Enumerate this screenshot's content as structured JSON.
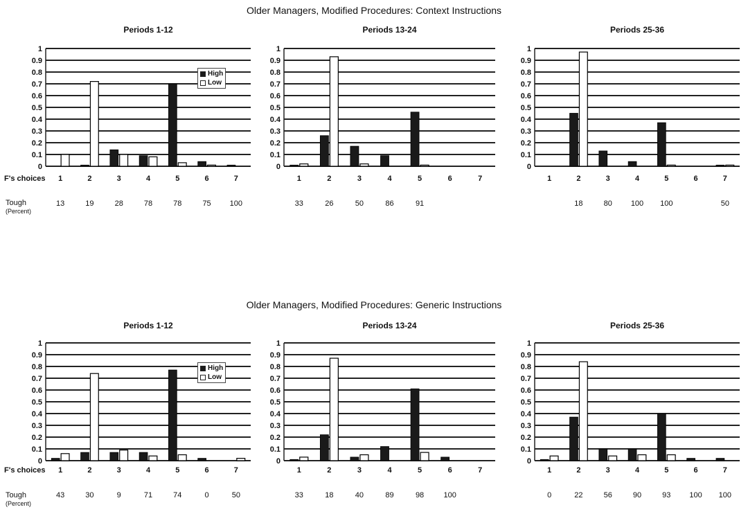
{
  "blocks": [
    {
      "title": "Older Managers, Modified Procedures:  Context Instructions"
    },
    {
      "title": "Older Managers, Modified Procedures:  Generic Instructions"
    }
  ],
  "labels": {
    "choices": "F's choices",
    "tough_main": "Tough",
    "tough_sub": "(Percent)"
  },
  "colors": {
    "high": "#1a1a1a",
    "low": "#ffffff",
    "grid": "#222222"
  },
  "chart_data": [
    {
      "type": "bar",
      "title": "Periods 1-12",
      "categories": [
        "1",
        "2",
        "3",
        "4",
        "5",
        "6",
        "7"
      ],
      "ylim": [
        0,
        1
      ],
      "yticks": [
        "0",
        "0.1",
        "0.2",
        "0.3",
        "0.4",
        "0.5",
        "0.6",
        "0.7",
        "0.8",
        "0.9",
        "1"
      ],
      "legend": [
        "High",
        "Low"
      ],
      "legend_position": "upper-right",
      "series": [
        {
          "name": "High",
          "values": [
            0.0,
            0.01,
            0.14,
            0.09,
            0.7,
            0.04,
            0.01
          ]
        },
        {
          "name": "Low",
          "values": [
            0.1,
            0.72,
            0.1,
            0.08,
            0.03,
            0.01,
            0.0
          ]
        }
      ],
      "tough": [
        "13",
        "19",
        "28",
        "78",
        "78",
        "75",
        "100"
      ]
    },
    {
      "type": "bar",
      "title": "Periods 13-24",
      "categories": [
        "1",
        "2",
        "3",
        "4",
        "5",
        "6",
        "7"
      ],
      "ylim": [
        0,
        1
      ],
      "yticks": [
        "0",
        "0.1",
        "0.2",
        "0.3",
        "0.4",
        "0.5",
        "0.6",
        "0.7",
        "0.8",
        "0.9",
        "1"
      ],
      "series": [
        {
          "name": "High",
          "values": [
            0.01,
            0.26,
            0.17,
            0.09,
            0.46,
            0.0,
            0.0
          ]
        },
        {
          "name": "Low",
          "values": [
            0.02,
            0.93,
            0.02,
            0.0,
            0.01,
            0.0,
            0.0
          ]
        }
      ],
      "tough": [
        "33",
        "26",
        "50",
        "86",
        "91",
        "",
        ""
      ]
    },
    {
      "type": "bar",
      "title": "Periods 25-36",
      "categories": [
        "1",
        "2",
        "3",
        "4",
        "5",
        "6",
        "7"
      ],
      "ylim": [
        0,
        1
      ],
      "yticks": [
        "0",
        "0.1",
        "0.2",
        "0.3",
        "0.4",
        "0.5",
        "0.6",
        "0.7",
        "0.8",
        "0.9",
        "1"
      ],
      "series": [
        {
          "name": "High",
          "values": [
            0.0,
            0.45,
            0.13,
            0.04,
            0.37,
            0.0,
            0.01
          ]
        },
        {
          "name": "Low",
          "values": [
            0.0,
            0.97,
            0.0,
            0.0,
            0.01,
            0.0,
            0.01
          ]
        }
      ],
      "tough": [
        "",
        "18",
        "80",
        "100",
        "100",
        "",
        "50"
      ]
    },
    {
      "type": "bar",
      "title": "Periods 1-12",
      "categories": [
        "1",
        "2",
        "3",
        "4",
        "5",
        "6",
        "7"
      ],
      "ylim": [
        0,
        1
      ],
      "yticks": [
        "0",
        "0.1",
        "0.2",
        "0.3",
        "0.4",
        "0.5",
        "0.6",
        "0.7",
        "0.8",
        "0.9",
        "1"
      ],
      "legend": [
        "High",
        "Low"
      ],
      "legend_position": "upper-right",
      "series": [
        {
          "name": "High",
          "values": [
            0.02,
            0.07,
            0.07,
            0.07,
            0.77,
            0.02,
            0.0
          ]
        },
        {
          "name": "Low",
          "values": [
            0.06,
            0.74,
            0.09,
            0.04,
            0.05,
            0.0,
            0.02
          ]
        }
      ],
      "tough": [
        "43",
        "30",
        "9",
        "71",
        "74",
        "0",
        "50"
      ]
    },
    {
      "type": "bar",
      "title": "Periods 13-24",
      "categories": [
        "1",
        "2",
        "3",
        "4",
        "5",
        "6",
        "7"
      ],
      "ylim": [
        0,
        1
      ],
      "yticks": [
        "0",
        "0.1",
        "0.2",
        "0.3",
        "0.4",
        "0.5",
        "0.6",
        "0.7",
        "0.8",
        "0.9",
        "1"
      ],
      "series": [
        {
          "name": "High",
          "values": [
            0.01,
            0.22,
            0.03,
            0.12,
            0.61,
            0.03,
            0.0
          ]
        },
        {
          "name": "Low",
          "values": [
            0.03,
            0.87,
            0.05,
            0.0,
            0.07,
            0.0,
            0.0
          ]
        }
      ],
      "tough": [
        "33",
        "18",
        "40",
        "89",
        "98",
        "100",
        ""
      ]
    },
    {
      "type": "bar",
      "title": "Periods 25-36",
      "categories": [
        "1",
        "2",
        "3",
        "4",
        "5",
        "6",
        "7"
      ],
      "ylim": [
        0,
        1
      ],
      "yticks": [
        "0",
        "0.1",
        "0.2",
        "0.3",
        "0.4",
        "0.5",
        "0.6",
        "0.7",
        "0.8",
        "0.9",
        "1"
      ],
      "series": [
        {
          "name": "High",
          "values": [
            0.01,
            0.37,
            0.1,
            0.1,
            0.4,
            0.02,
            0.02
          ]
        },
        {
          "name": "Low",
          "values": [
            0.04,
            0.84,
            0.04,
            0.05,
            0.05,
            0.0,
            0.0
          ]
        }
      ],
      "tough": [
        "0",
        "22",
        "56",
        "90",
        "93",
        "100",
        "100"
      ]
    }
  ]
}
